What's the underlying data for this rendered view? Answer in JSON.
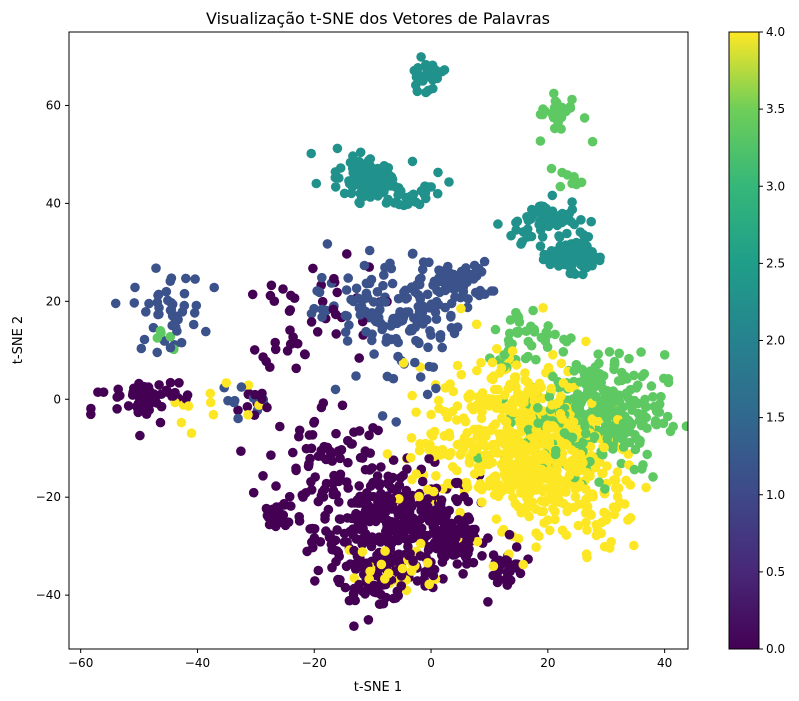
{
  "chart_data": {
    "type": "scatter",
    "title": "Visualização t-SNE dos Vetores de Palavras",
    "xlabel": "t-SNE 1",
    "ylabel": "t-SNE 2",
    "xlim": [
      -62,
      44
    ],
    "ylim": [
      -51,
      75
    ],
    "xticks": [
      -60,
      -40,
      -20,
      0,
      20,
      40
    ],
    "xtick_labels": [
      "−60",
      "−40",
      "−20",
      "0",
      "20",
      "40"
    ],
    "yticks": [
      -40,
      -20,
      0,
      20,
      40,
      60
    ],
    "ytick_labels": [
      "−40",
      "−20",
      "0",
      "20",
      "40",
      "60"
    ],
    "grid": false,
    "legend": "none",
    "colormap": "viridis",
    "colorbar": {
      "range": [
        0.0,
        4.0
      ],
      "ticks": [
        0.0,
        0.5,
        1.0,
        1.5,
        2.0,
        2.5,
        3.0,
        3.5,
        4.0
      ],
      "tick_labels": [
        "0.0",
        "0.5",
        "1.0",
        "1.5",
        "2.0",
        "2.5",
        "3.0",
        "3.5",
        "4.0"
      ]
    },
    "color_values": [
      0,
      1,
      2,
      3,
      4
    ],
    "class_colors": [
      "#440154",
      "#3b528b",
      "#21918c",
      "#5ec962",
      "#fde725"
    ],
    "clusters": [
      {
        "c": 0,
        "cx": -6,
        "cy": -26,
        "sx": 7,
        "sy": 6,
        "n": 380
      },
      {
        "c": 0,
        "cx": 4,
        "cy": -30,
        "sx": 2.2,
        "sy": 2.2,
        "n": 70
      },
      {
        "c": 0,
        "cx": 13,
        "cy": -34,
        "sx": 1.5,
        "sy": 2,
        "n": 30
      },
      {
        "c": 0,
        "cx": -9,
        "cy": -37,
        "sx": 3,
        "sy": 2,
        "n": 50
      },
      {
        "c": 0,
        "cx": -49,
        "cy": 0.5,
        "sx": 1.2,
        "sy": 1.2,
        "n": 60
      },
      {
        "c": 0,
        "cx": -52,
        "cy": -2,
        "sx": 3,
        "sy": 3,
        "n": 16
      },
      {
        "c": 0,
        "cx": -26,
        "cy": -24,
        "sx": 2,
        "sy": 2,
        "n": 28
      },
      {
        "c": 0,
        "cx": -18,
        "cy": -12,
        "sx": 5,
        "sy": 6,
        "n": 70
      },
      {
        "c": 0,
        "cx": -24,
        "cy": 16,
        "sx": 2.5,
        "sy": 5,
        "n": 28
      },
      {
        "c": 0,
        "cx": -31,
        "cy": -1,
        "sx": 2,
        "sy": 2,
        "n": 12
      },
      {
        "c": 0,
        "cx": -44,
        "cy": 2,
        "sx": 2,
        "sy": 2,
        "n": 10
      },
      {
        "c": 0,
        "cx": -17,
        "cy": 18,
        "sx": 4,
        "sy": 5,
        "n": 18
      },
      {
        "c": 1,
        "cx": -7,
        "cy": 17,
        "sx": 6,
        "sy": 3.5,
        "n": 110
      },
      {
        "c": 1,
        "cx": 5,
        "cy": 24,
        "sx": 2.5,
        "sy": 2,
        "n": 60
      },
      {
        "c": 1,
        "cx": -45,
        "cy": 18,
        "sx": 3,
        "sy": 4,
        "n": 45
      },
      {
        "c": 1,
        "cx": -5,
        "cy": 25,
        "sx": 8,
        "sy": 3,
        "n": 35
      },
      {
        "c": 1,
        "cx": -32,
        "cy": 0,
        "sx": 2,
        "sy": 1.5,
        "n": 10
      },
      {
        "c": 1,
        "cx": -3,
        "cy": 5,
        "sx": 6,
        "sy": 6,
        "n": 20
      },
      {
        "c": 2,
        "cx": -10,
        "cy": 45,
        "sx": 1.7,
        "sy": 1.7,
        "n": 110
      },
      {
        "c": 2,
        "cx": 24,
        "cy": 29.5,
        "sx": 1.8,
        "sy": 1.6,
        "n": 140
      },
      {
        "c": 2,
        "cx": 20,
        "cy": 37,
        "sx": 2.5,
        "sy": 1.8,
        "n": 50
      },
      {
        "c": 2,
        "cx": -4,
        "cy": 41,
        "sx": 1.5,
        "sy": 1,
        "n": 22
      },
      {
        "c": 2,
        "cx": -1,
        "cy": 66,
        "sx": 1.5,
        "sy": 1.5,
        "n": 24
      },
      {
        "c": 2,
        "cx": -13,
        "cy": 47,
        "sx": 2.5,
        "sy": 2.5,
        "n": 22
      },
      {
        "c": 2,
        "cx": 0,
        "cy": 45,
        "sx": 2,
        "sy": 2,
        "n": 8
      },
      {
        "c": 2,
        "cx": 15,
        "cy": 34,
        "sx": 2,
        "sy": 1.5,
        "n": 14
      },
      {
        "c": 3,
        "cx": 28,
        "cy": -3,
        "sx": 6,
        "sy": 6,
        "n": 330
      },
      {
        "c": 3,
        "cx": 22,
        "cy": 58,
        "sx": 2,
        "sy": 2.5,
        "n": 24
      },
      {
        "c": 3,
        "cx": 24,
        "cy": 45,
        "sx": 1,
        "sy": 1,
        "n": 10
      },
      {
        "c": 3,
        "cx": 17,
        "cy": 13,
        "sx": 4,
        "sy": 3,
        "n": 40
      },
      {
        "c": 3,
        "cx": -45,
        "cy": 13,
        "sx": 1.5,
        "sy": 1.5,
        "n": 6
      },
      {
        "c": 4,
        "cx": 17,
        "cy": -10,
        "sx": 6,
        "sy": 8,
        "n": 520
      },
      {
        "c": 4,
        "cx": 28,
        "cy": -20,
        "sx": 4,
        "sy": 6,
        "n": 60
      },
      {
        "c": 4,
        "cx": 4,
        "cy": -10,
        "sx": 6,
        "sy": 6,
        "n": 70
      },
      {
        "c": 4,
        "cx": -6,
        "cy": -35,
        "sx": 4,
        "sy": 3,
        "n": 30
      },
      {
        "c": 4,
        "cx": -38,
        "cy": -1,
        "sx": 4,
        "sy": 3,
        "n": 12
      },
      {
        "c": 4,
        "cx": 10,
        "cy": 3,
        "sx": 5,
        "sy": 5,
        "n": 40
      }
    ]
  }
}
